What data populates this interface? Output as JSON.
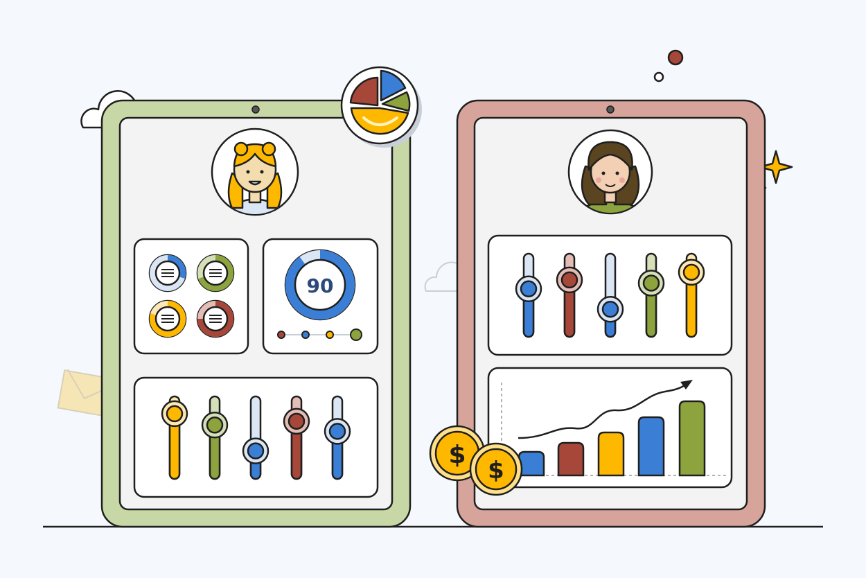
{
  "colors": {
    "background": "#f5f8fc",
    "left_tablet": "#c8d7a6",
    "right_tablet": "#d6a49b",
    "screen": "#f3f3f3",
    "blue": "#3a7fd5",
    "red": "#a6473a",
    "yellow": "#ffb800",
    "olive": "#8ca33e",
    "light_blue": "#dbe6f5"
  },
  "left_tablet": {
    "avatar": "woman-yellow-hair-avatar",
    "donuts": [
      {
        "color": "#3a7fd5",
        "track": "#dbe6f5",
        "fraction": 0.3
      },
      {
        "color": "#8ca33e",
        "track": "#d5e0b8",
        "fraction": 0.7
      },
      {
        "color": "#ffb800",
        "track": "#fde7b3",
        "fraction": 0.8
      },
      {
        "color": "#a6473a",
        "track": "#e3bcb5",
        "fraction": 0.75
      }
    ],
    "gauge": {
      "value": "90",
      "fraction": 0.9,
      "dots": [
        "#a6473a",
        "#3a7fd5",
        "#ffb800",
        "#8ca33e"
      ]
    },
    "sliders": [
      {
        "color": "#ffb800",
        "track": "#fde7b3",
        "level": 0.88
      },
      {
        "color": "#8ca33e",
        "track": "#d5e0b8",
        "level": 0.7
      },
      {
        "color": "#3a7fd5",
        "track": "#dbe6f5",
        "level": 0.29
      },
      {
        "color": "#a6473a",
        "track": "#e3bcb5",
        "level": 0.76
      },
      {
        "color": "#3a7fd5",
        "track": "#dbe6f5",
        "level": 0.6
      }
    ]
  },
  "right_tablet": {
    "avatar": "woman-curly-hair-avatar",
    "sliders": [
      {
        "color": "#3a7fd5",
        "track": "#dbe6f5",
        "level": 0.6
      },
      {
        "color": "#a6473a",
        "track": "#e3bcb5",
        "level": 0.74
      },
      {
        "color": "#3a7fd5",
        "track": "#dbe6f5",
        "level": 0.28
      },
      {
        "color": "#8ca33e",
        "track": "#d5e0b8",
        "level": 0.69
      },
      {
        "color": "#ffb800",
        "track": "#fde7b3",
        "level": 0.86
      }
    ],
    "chart_bars": [
      {
        "color": "#3a7fd5",
        "value": 34
      },
      {
        "color": "#a6473a",
        "value": 47
      },
      {
        "color": "#ffb800",
        "value": 62
      },
      {
        "color": "#3a7fd5",
        "value": 84
      },
      {
        "color": "#8ca33e",
        "value": 107
      }
    ]
  },
  "decorations": {
    "pie_badge": "pie-chart-icon",
    "coins": [
      "dollar-coin-icon",
      "dollar-coin-icon"
    ],
    "coin_symbol": "$"
  }
}
